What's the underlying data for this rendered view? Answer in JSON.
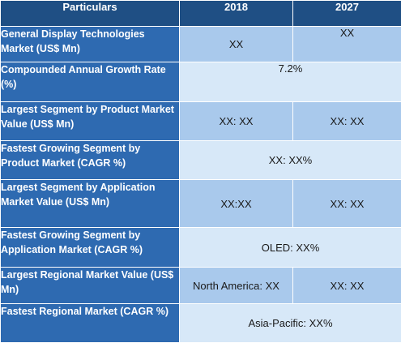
{
  "header": {
    "particulars": "Particulars",
    "year_a": "2018",
    "year_b": "2027"
  },
  "rows": [
    {
      "label": "General Display Technologies Market (US$ Mn)",
      "v2018": "XX",
      "v2027": "XX"
    },
    {
      "label": "Compounded Annual Growth Rate (%)",
      "merged": "7.2%"
    },
    {
      "label": "Largest Segment by Product Market Value (US$ Mn)",
      "v2018": "XX: XX",
      "v2027": "XX: XX"
    },
    {
      "label": "Fastest Growing Segment by Product Market (CAGR %)",
      "merged": "XX: XX%"
    },
    {
      "label": "Largest Segment by Application Market Value (US$ Mn)",
      "v2018": "XX:XX",
      "v2027": "XX: XX"
    },
    {
      "label": "Fastest Growing Segment by Application Market (CAGR %)",
      "merged": "OLED: XX%"
    },
    {
      "label": "Largest Regional Market Value (US$ Mn)",
      "v2018": "North America: XX",
      "v2027": "XX: XX"
    },
    {
      "label": "Fastest Regional Market (CAGR %)",
      "merged": "Asia-Pacific: XX%"
    }
  ],
  "colors": {
    "header_bg": "#1f4f84",
    "label_bg": "#2e6ab1",
    "cell_dark": "#a9c9ec",
    "cell_light": "#d7e8f8"
  }
}
